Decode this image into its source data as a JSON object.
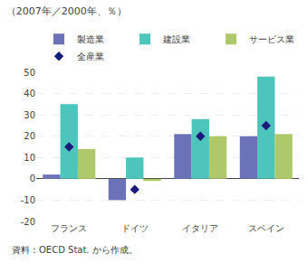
{
  "chart_data": {
    "type": "bar",
    "title": "（2007年／2000年、％）",
    "categories": [
      "フランス",
      "ドイツ",
      "イタリア",
      "スペイン"
    ],
    "series": [
      {
        "name": "製造業",
        "color": "#6b72b8",
        "values": [
          2,
          -10,
          21,
          20
        ]
      },
      {
        "name": "建設業",
        "color": "#4dc4bc",
        "values": [
          35,
          10,
          28,
          48
        ]
      },
      {
        "name": "サービス業",
        "color": "#aec96a",
        "values": [
          14,
          -1,
          20,
          21
        ]
      },
      {
        "name": "全産業",
        "type": "scatter",
        "marker": "diamond",
        "color": "#1a1a7a",
        "values": [
          15,
          -5,
          20,
          25
        ]
      }
    ],
    "ylim": [
      -20,
      50
    ],
    "yticks": [
      -20,
      -10,
      0,
      10,
      20,
      30,
      40,
      50
    ],
    "grid": true,
    "legend": "top",
    "annotations": [
      "資料：OECD Stat. から作成。"
    ]
  }
}
